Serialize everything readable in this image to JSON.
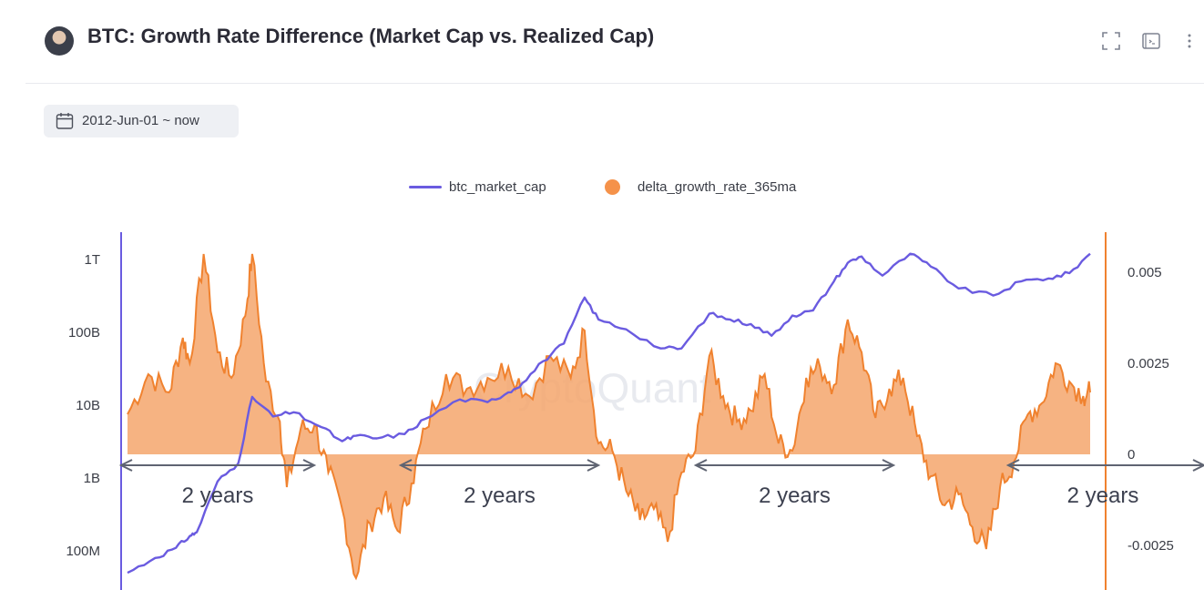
{
  "header": {
    "title": "BTC: Growth Rate Difference (Market Cap vs. Realized Cap)",
    "icons": [
      "fullscreen-icon",
      "console-icon",
      "more-vert-icon"
    ]
  },
  "date_range": {
    "label": "2012-Jun-01 ~ now",
    "icon": "calendar-icon"
  },
  "legend": {
    "market_cap": "btc_market_cap",
    "delta": "delta_growth_rate_365ma"
  },
  "watermark": "CryptoQuant",
  "colors": {
    "market_cap": "#6a5be0",
    "delta_fill": "#f5a66c",
    "delta_line": "#f0822f",
    "arrow": "#5f6472"
  },
  "chart_data": {
    "type": "line",
    "x_range": [
      "2012-06",
      "2024-01"
    ],
    "y_left": {
      "scale": "log",
      "ticks": [
        "100M",
        "1B",
        "10B",
        "100B",
        "1T"
      ]
    },
    "y_right": {
      "ticks": [
        "0.005",
        "0.0025",
        "0",
        "-0.0025"
      ],
      "range": [
        -0.0035,
        0.0057
      ]
    },
    "series": [
      {
        "name": "btc_market_cap",
        "axis": "left",
        "dates": [
          "2012-06",
          "2012-10",
          "2013-01",
          "2013-03",
          "2013-04",
          "2013-07",
          "2013-10",
          "2013-12",
          "2014-03",
          "2014-06",
          "2014-10",
          "2015-01",
          "2015-03",
          "2015-06",
          "2015-10",
          "2016-01",
          "2016-06",
          "2016-10",
          "2017-01",
          "2017-03",
          "2017-06",
          "2017-09",
          "2017-12",
          "2018-02",
          "2018-06",
          "2018-11",
          "2019-02",
          "2019-06",
          "2019-09",
          "2019-12",
          "2020-03",
          "2020-06",
          "2020-09",
          "2020-12",
          "2021-02",
          "2021-04",
          "2021-07",
          "2021-11",
          "2022-02",
          "2022-06",
          "2022-11",
          "2023-03",
          "2023-07",
          "2023-10",
          "2024-01"
        ],
        "values": [
          50000000.0,
          80000000.0,
          110000000.0,
          160000000.0,
          180000000.0,
          900000000.0,
          1600000000.0,
          13000000000.0,
          7000000000.0,
          8000000000.0,
          5000000000.0,
          3200000000.0,
          3800000000.0,
          3500000000.0,
          4000000000.0,
          6500000000.0,
          12000000000.0,
          11000000000.0,
          15000000000.0,
          20000000000.0,
          40000000000.0,
          70000000000.0,
          300000000000.0,
          150000000000.0,
          110000000000.0,
          60000000000.0,
          60000000000.0,
          180000000000.0,
          150000000000.0,
          130000000000.0,
          90000000000.0,
          170000000000.0,
          200000000000.0,
          500000000000.0,
          900000000000.0,
          1100000000000.0,
          600000000000.0,
          1200000000000.0,
          800000000000.0,
          400000000000.0,
          320000000000.0,
          500000000000.0,
          550000000000.0,
          650000000000.0,
          1200000000000.0
        ]
      },
      {
        "name": "delta_growth_rate_365ma",
        "axis": "right",
        "dates": [
          "2012-06",
          "2012-09",
          "2012-12",
          "2013-02",
          "2013-03",
          "2013-05",
          "2013-07",
          "2013-09",
          "2013-11",
          "2013-12",
          "2014-02",
          "2014-04",
          "2014-05",
          "2014-07",
          "2014-09",
          "2014-11",
          "2015-01",
          "2015-03",
          "2015-05",
          "2015-07",
          "2015-09",
          "2015-11",
          "2016-01",
          "2016-04",
          "2016-07",
          "2016-10",
          "2017-01",
          "2017-04",
          "2017-07",
          "2017-10",
          "2017-12",
          "2018-02",
          "2018-04",
          "2018-06",
          "2018-08",
          "2018-10",
          "2018-12",
          "2019-02",
          "2019-04",
          "2019-06",
          "2019-08",
          "2019-10",
          "2019-12",
          "2020-02",
          "2020-04",
          "2020-06",
          "2020-08",
          "2020-10",
          "2020-12",
          "2021-02",
          "2021-04",
          "2021-06",
          "2021-08",
          "2021-10",
          "2021-12",
          "2022-02",
          "2022-04",
          "2022-06",
          "2022-08",
          "2022-10",
          "2022-12",
          "2023-02",
          "2023-04",
          "2023-06",
          "2023-08",
          "2023-10",
          "2023-12",
          "2024-01"
        ],
        "values": [
          0.0011,
          0.0022,
          0.0017,
          0.0032,
          0.0025,
          0.0055,
          0.0028,
          0.0021,
          0.0038,
          0.0055,
          0.002,
          0.0009,
          -0.0009,
          0.0007,
          0.0008,
          -0.0005,
          -0.0015,
          -0.0034,
          -0.0019,
          -0.0012,
          -0.0021,
          -0.0008,
          0.0007,
          0.0022,
          0.0018,
          0.0021,
          0.0024,
          0.0016,
          0.0027,
          0.0021,
          0.0034,
          0.0003,
          0.0001,
          -0.001,
          -0.0018,
          -0.0015,
          -0.0024,
          -0.0005,
          0.0001,
          0.0027,
          0.0016,
          0.0009,
          0.0012,
          0.0022,
          0.0003,
          0.0001,
          0.0021,
          0.0024,
          0.0019,
          0.0037,
          0.0028,
          0.001,
          0.0018,
          0.0021,
          0.0005,
          -0.0006,
          -0.0014,
          -0.0011,
          -0.002,
          -0.0026,
          -0.0009,
          -0.0002,
          0.0011,
          0.0014,
          0.0025,
          0.002,
          0.0016,
          0.0017
        ]
      }
    ],
    "annotations": [
      {
        "text": "2 years",
        "from": "2012-06",
        "to": "2014-12"
      },
      {
        "text": "2 years",
        "from": "2015-09",
        "to": "2018-03"
      },
      {
        "text": "2 years",
        "from": "2018-10",
        "to": "2021-04"
      },
      {
        "text": "2 years",
        "from": "2022-01",
        "to": "2024-01"
      }
    ],
    "grid": false,
    "legend_position": "top-center"
  }
}
